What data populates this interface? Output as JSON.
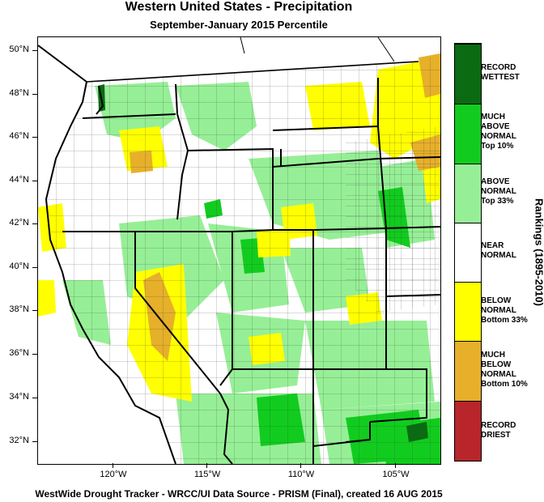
{
  "title": "Western United States - Precipitation",
  "subtitle": "September-January 2015 Percentile",
  "footer": "WestWide Drought Tracker - WRCC/UI  Data Source - PRISM (Final), created 16 AUG 2015",
  "latitude_labels": [
    "50°N",
    "48°N",
    "46°N",
    "44°N",
    "42°N",
    "40°N",
    "38°N",
    "36°N",
    "34°N",
    "32°N"
  ],
  "longitude_labels": [
    "120°W",
    "115°W",
    "110°W",
    "105°W"
  ],
  "legend": {
    "title": "Rankings (1895-2010)",
    "categories": [
      {
        "lines": [
          "RECORD",
          "WETTEST"
        ],
        "color": "#0a6b12"
      },
      {
        "lines": [
          "MUCH",
          "ABOVE",
          "NORMAL",
          "Top 10%"
        ],
        "color": "#11cc1e"
      },
      {
        "lines": [
          "ABOVE",
          "NORMAL",
          "Top 33%"
        ],
        "color": "#96ef96"
      },
      {
        "lines": [
          "NEAR",
          "NORMAL"
        ],
        "color": "#ffffff"
      },
      {
        "lines": [
          "BELOW",
          "NORMAL",
          "Bottom 33%"
        ],
        "color": "#ffff00"
      },
      {
        "lines": [
          "MUCH",
          "BELOW",
          "NORMAL",
          "Bottom 10%"
        ],
        "color": "#e6b02a"
      },
      {
        "lines": [
          "RECORD",
          "DRIEST"
        ],
        "color": "#b8252a"
      }
    ]
  },
  "colors": {
    "record_wettest": "#0a6b12",
    "much_above": "#11cc1e",
    "above": "#96ef96",
    "near": "#ffffff",
    "below": "#ffff00",
    "much_below": "#e6b02a",
    "record_driest": "#b8252a"
  }
}
